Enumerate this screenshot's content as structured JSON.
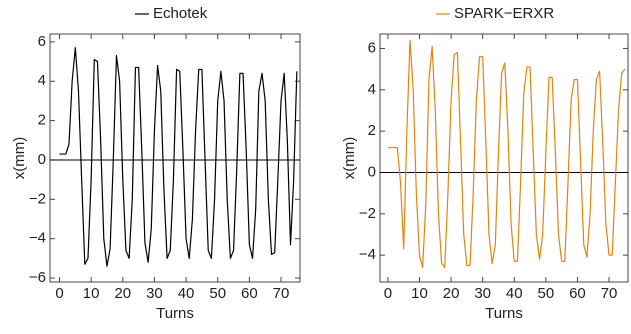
{
  "chart_data": [
    {
      "type": "line",
      "xlabel": "Turns",
      "ylabel": "x(mm)",
      "xlim": [
        -3,
        76
      ],
      "ylim": [
        -6.2,
        6.4
      ],
      "xticks": [
        0,
        10,
        20,
        30,
        40,
        50,
        60,
        70
      ],
      "yticks": [
        {
          "value": -6,
          "label": "−6"
        },
        {
          "value": -4,
          "label": "−4"
        },
        {
          "value": -2,
          "label": "−2"
        },
        0,
        2,
        4,
        6
      ],
      "x": [
        0,
        1,
        2,
        3,
        4,
        5,
        6,
        7,
        8,
        9,
        10,
        11,
        12,
        13,
        14,
        15,
        16,
        17,
        18,
        19,
        20,
        21,
        22,
        23,
        24,
        25,
        26,
        27,
        28,
        29,
        30,
        31,
        32,
        33,
        34,
        35,
        36,
        37,
        38,
        39,
        40,
        41,
        42,
        43,
        44,
        45,
        46,
        47,
        48,
        49,
        50,
        51,
        52,
        53,
        54,
        55,
        56,
        57,
        58,
        59,
        60,
        61,
        62,
        63,
        64,
        65,
        66,
        67,
        68,
        69,
        70,
        71,
        72,
        73,
        74,
        75
      ],
      "series": [
        {
          "name": "Echotek",
          "color": "#000000",
          "values": [
            0.3,
            0.3,
            0.3,
            0.8,
            4.0,
            5.7,
            3.5,
            -1.0,
            -5.3,
            -5.0,
            -1.0,
            5.1,
            5.0,
            1.0,
            -4.0,
            -5.4,
            -4.5,
            0.0,
            5.3,
            4.0,
            -1.0,
            -4.6,
            -5.0,
            -2.0,
            4.7,
            4.7,
            0.5,
            -4.2,
            -5.2,
            -3.5,
            1.5,
            4.8,
            3.5,
            -1.5,
            -5.0,
            -4.6,
            -1.0,
            4.6,
            4.5,
            0.5,
            -4.0,
            -5.0,
            -3.0,
            1.5,
            4.6,
            4.6,
            0.0,
            -4.6,
            -5.0,
            -2.0,
            3.0,
            4.5,
            3.0,
            -2.0,
            -5.0,
            -4.6,
            -0.5,
            4.4,
            4.4,
            0.5,
            -4.3,
            -5.0,
            -2.5,
            3.5,
            4.4,
            3.0,
            -2.0,
            -4.8,
            -4.7,
            -1.0,
            3.0,
            4.4,
            1.0,
            -4.3,
            -1.0,
            4.5
          ]
        }
      ]
    },
    {
      "type": "line",
      "xlabel": "Turns",
      "ylabel": "x(mm)",
      "xlim": [
        -2.5,
        76
      ],
      "ylim": [
        -5.3,
        6.7
      ],
      "xticks": [
        0,
        10,
        20,
        30,
        40,
        50,
        60,
        70
      ],
      "yticks": [
        {
          "value": -4,
          "label": "−4"
        },
        {
          "value": -2,
          "label": "−2"
        },
        0,
        2,
        4,
        6
      ],
      "x": [
        0,
        1,
        2,
        3,
        4,
        5,
        6,
        7,
        8,
        9,
        10,
        11,
        12,
        13,
        14,
        15,
        16,
        17,
        18,
        19,
        20,
        21,
        22,
        23,
        24,
        25,
        26,
        27,
        28,
        29,
        30,
        31,
        32,
        33,
        34,
        35,
        36,
        37,
        38,
        39,
        40,
        41,
        42,
        43,
        44,
        45,
        46,
        47,
        48,
        49,
        50,
        51,
        52,
        53,
        54,
        55,
        56,
        57,
        58,
        59,
        60,
        61,
        62,
        63,
        64,
        65,
        66,
        67,
        68,
        69,
        70,
        71,
        72,
        73,
        74,
        75
      ],
      "series": [
        {
          "name": "SPARK−ERXR",
          "color": "#e8820c",
          "values": [
            1.2,
            1.2,
            1.2,
            1.2,
            -0.5,
            -3.7,
            2.0,
            6.4,
            4.0,
            -1.0,
            -4.0,
            -4.6,
            -1.5,
            4.5,
            6.1,
            3.0,
            -2.0,
            -4.4,
            -4.6,
            -1.0,
            3.5,
            5.7,
            5.8,
            1.5,
            -3.0,
            -4.5,
            -4.5,
            -1.0,
            3.5,
            5.6,
            5.6,
            1.5,
            -3.0,
            -4.4,
            -3.5,
            1.0,
            4.8,
            5.3,
            2.0,
            -2.5,
            -4.3,
            -4.3,
            -0.5,
            3.8,
            5.1,
            5.1,
            1.0,
            -3.0,
            -4.2,
            -3.0,
            1.0,
            4.6,
            4.6,
            1.0,
            -3.0,
            -4.3,
            -4.3,
            -0.5,
            3.5,
            4.5,
            4.5,
            0.5,
            -3.5,
            -4.1,
            -2.0,
            2.0,
            4.5,
            4.9,
            1.5,
            -2.5,
            -4.0,
            -4.0,
            -0.5,
            3.0,
            4.8,
            5.0
          ]
        }
      ]
    }
  ]
}
